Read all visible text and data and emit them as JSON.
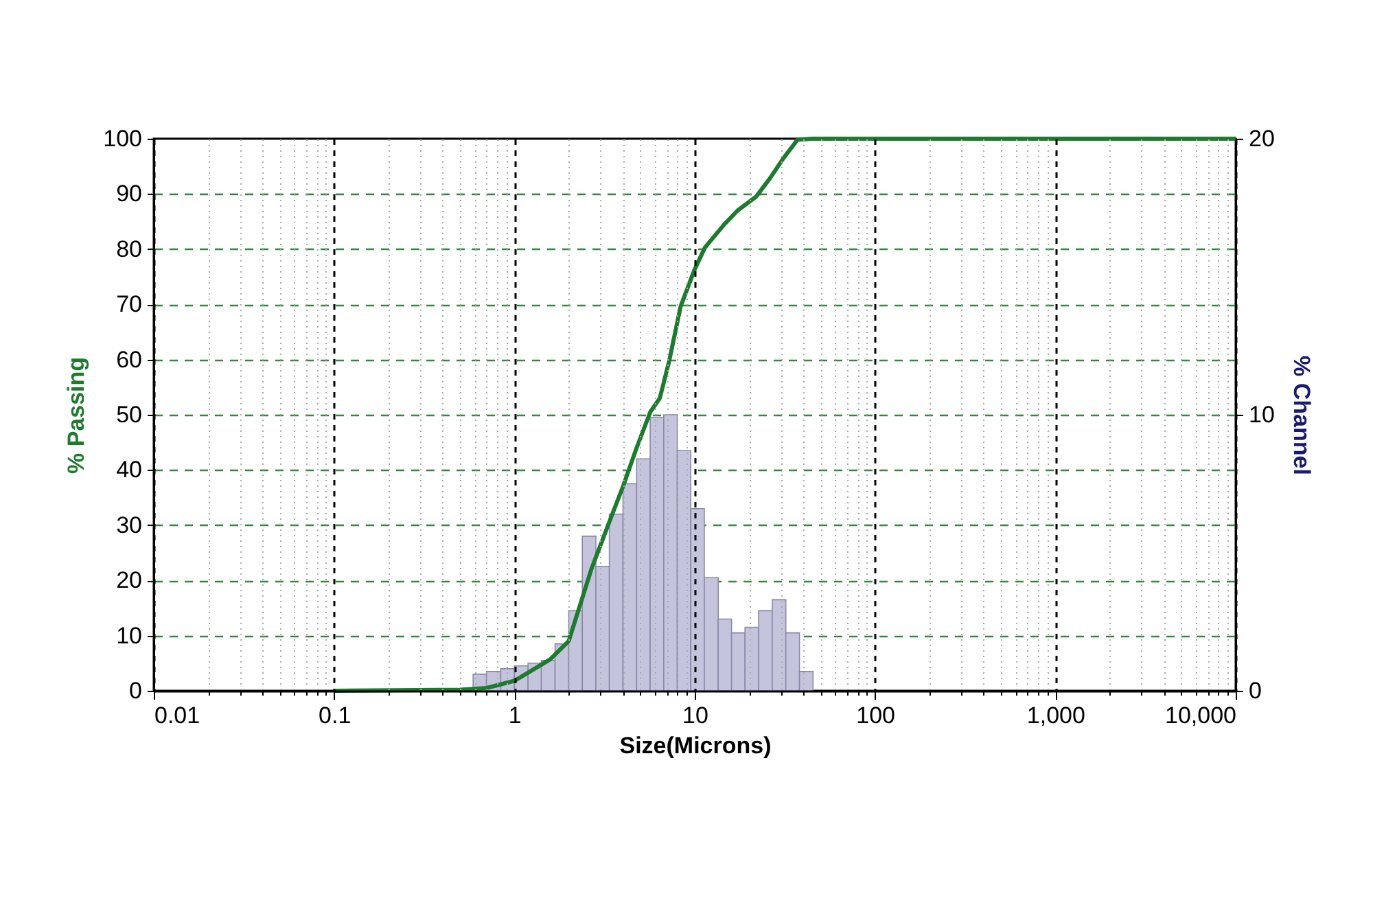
{
  "chart_data": {
    "type": "line",
    "xlabel": "Size(Microns)",
    "ylabel": "% Passing",
    "y2label": "% Channel",
    "log": "x",
    "grid": true,
    "xlim": [
      0.01,
      10000
    ],
    "ylim": [
      0,
      100
    ],
    "y2lim": [
      0,
      20
    ],
    "xticks": [
      0.01,
      {
        "value": 0.02,
        "label": null
      },
      {
        "value": 0.03,
        "label": null
      },
      {
        "value": 0.04,
        "label": null
      },
      {
        "value": 0.05,
        "label": null
      },
      {
        "value": 0.06,
        "label": null
      },
      {
        "value": 0.07,
        "label": null
      },
      {
        "value": 0.08,
        "label": null
      },
      {
        "value": 0.09,
        "label": null
      },
      0.1,
      {
        "value": 0.2,
        "label": null
      },
      {
        "value": 0.3,
        "label": null
      },
      {
        "value": 0.4,
        "label": null
      },
      {
        "value": 0.5,
        "label": null
      },
      {
        "value": 0.6,
        "label": null
      },
      {
        "value": 0.7,
        "label": null
      },
      {
        "value": 0.8,
        "label": null
      },
      {
        "value": 0.9,
        "label": null
      },
      1,
      {
        "value": 2,
        "label": null
      },
      {
        "value": 3,
        "label": null
      },
      {
        "value": 4,
        "label": null
      },
      {
        "value": 5,
        "label": null
      },
      {
        "value": 6,
        "label": null
      },
      {
        "value": 7,
        "label": null
      },
      {
        "value": 8,
        "label": null
      },
      {
        "value": 9,
        "label": null
      },
      10,
      {
        "value": 20,
        "label": null
      },
      {
        "value": 30,
        "label": null
      },
      {
        "value": 40,
        "label": null
      },
      {
        "value": 50,
        "label": null
      },
      {
        "value": 60,
        "label": null
      },
      {
        "value": 70,
        "label": null
      },
      {
        "value": 80,
        "label": null
      },
      {
        "value": 90,
        "label": null
      },
      100,
      {
        "value": 200,
        "label": null
      },
      {
        "value": 300,
        "label": null
      },
      {
        "value": 400,
        "label": null
      },
      {
        "value": 500,
        "label": null
      },
      {
        "value": 600,
        "label": null
      },
      {
        "value": 700,
        "label": null
      },
      {
        "value": 800,
        "label": null
      },
      {
        "value": 900,
        "label": null
      },
      {
        "value": 1000,
        "label": "1,000"
      },
      {
        "value": 2000,
        "label": null
      },
      {
        "value": 3000,
        "label": null
      },
      {
        "value": 4000,
        "label": null
      },
      {
        "value": 5000,
        "label": null
      },
      {
        "value": 6000,
        "label": null
      },
      {
        "value": 7000,
        "label": null
      },
      {
        "value": 8000,
        "label": null
      },
      {
        "value": 9000,
        "label": null
      },
      {
        "value": 10000,
        "label": "10,000"
      }
    ],
    "yticks": [
      0,
      10,
      20,
      30,
      40,
      50,
      60,
      70,
      80,
      90,
      100
    ],
    "y2ticks": [
      0,
      10,
      20
    ],
    "series": [
      {
        "type": "histogram",
        "axis": "y2",
        "color": "#c4c4dc",
        "bins": [
          0.59,
          0.7,
          0.84,
          1.0,
          1.19,
          1.41,
          1.68,
          2.0,
          2.38,
          2.83,
          3.36,
          4.0,
          4.76,
          5.66,
          6.73,
          8.0,
          9.51,
          11.3,
          13.5,
          16.0,
          19.0,
          22.6,
          26.9,
          32.0,
          38.1,
          45.3
        ],
        "values": [
          0.6,
          0.7,
          0.8,
          0.9,
          1.0,
          1.1,
          1.7,
          2.9,
          5.6,
          4.5,
          6.4,
          7.5,
          8.4,
          9.9,
          10.0,
          8.7,
          6.6,
          4.1,
          2.6,
          2.1,
          2.3,
          2.9,
          3.3,
          2.1,
          0.7
        ]
      },
      {
        "color": "#1e7a2e",
        "x": [
          0.1,
          0.5,
          0.7,
          1.0,
          1.58,
          2.0,
          2.67,
          3.36,
          4.0,
          4.76,
          5.67,
          6.4,
          7.2,
          8.35,
          9.95,
          11.4,
          14.6,
          17.3,
          21.9,
          26.1,
          31.1,
          37.1,
          45,
          10000
        ],
        "values": [
          0,
          0.2,
          0.5,
          1.8,
          5.7,
          9,
          22,
          30.6,
          37,
          44,
          50.5,
          53,
          59.6,
          69.6,
          76.2,
          80.3,
          84.5,
          87,
          89.5,
          92.8,
          96.5,
          99.8,
          100,
          100
        ]
      }
    ]
  }
}
